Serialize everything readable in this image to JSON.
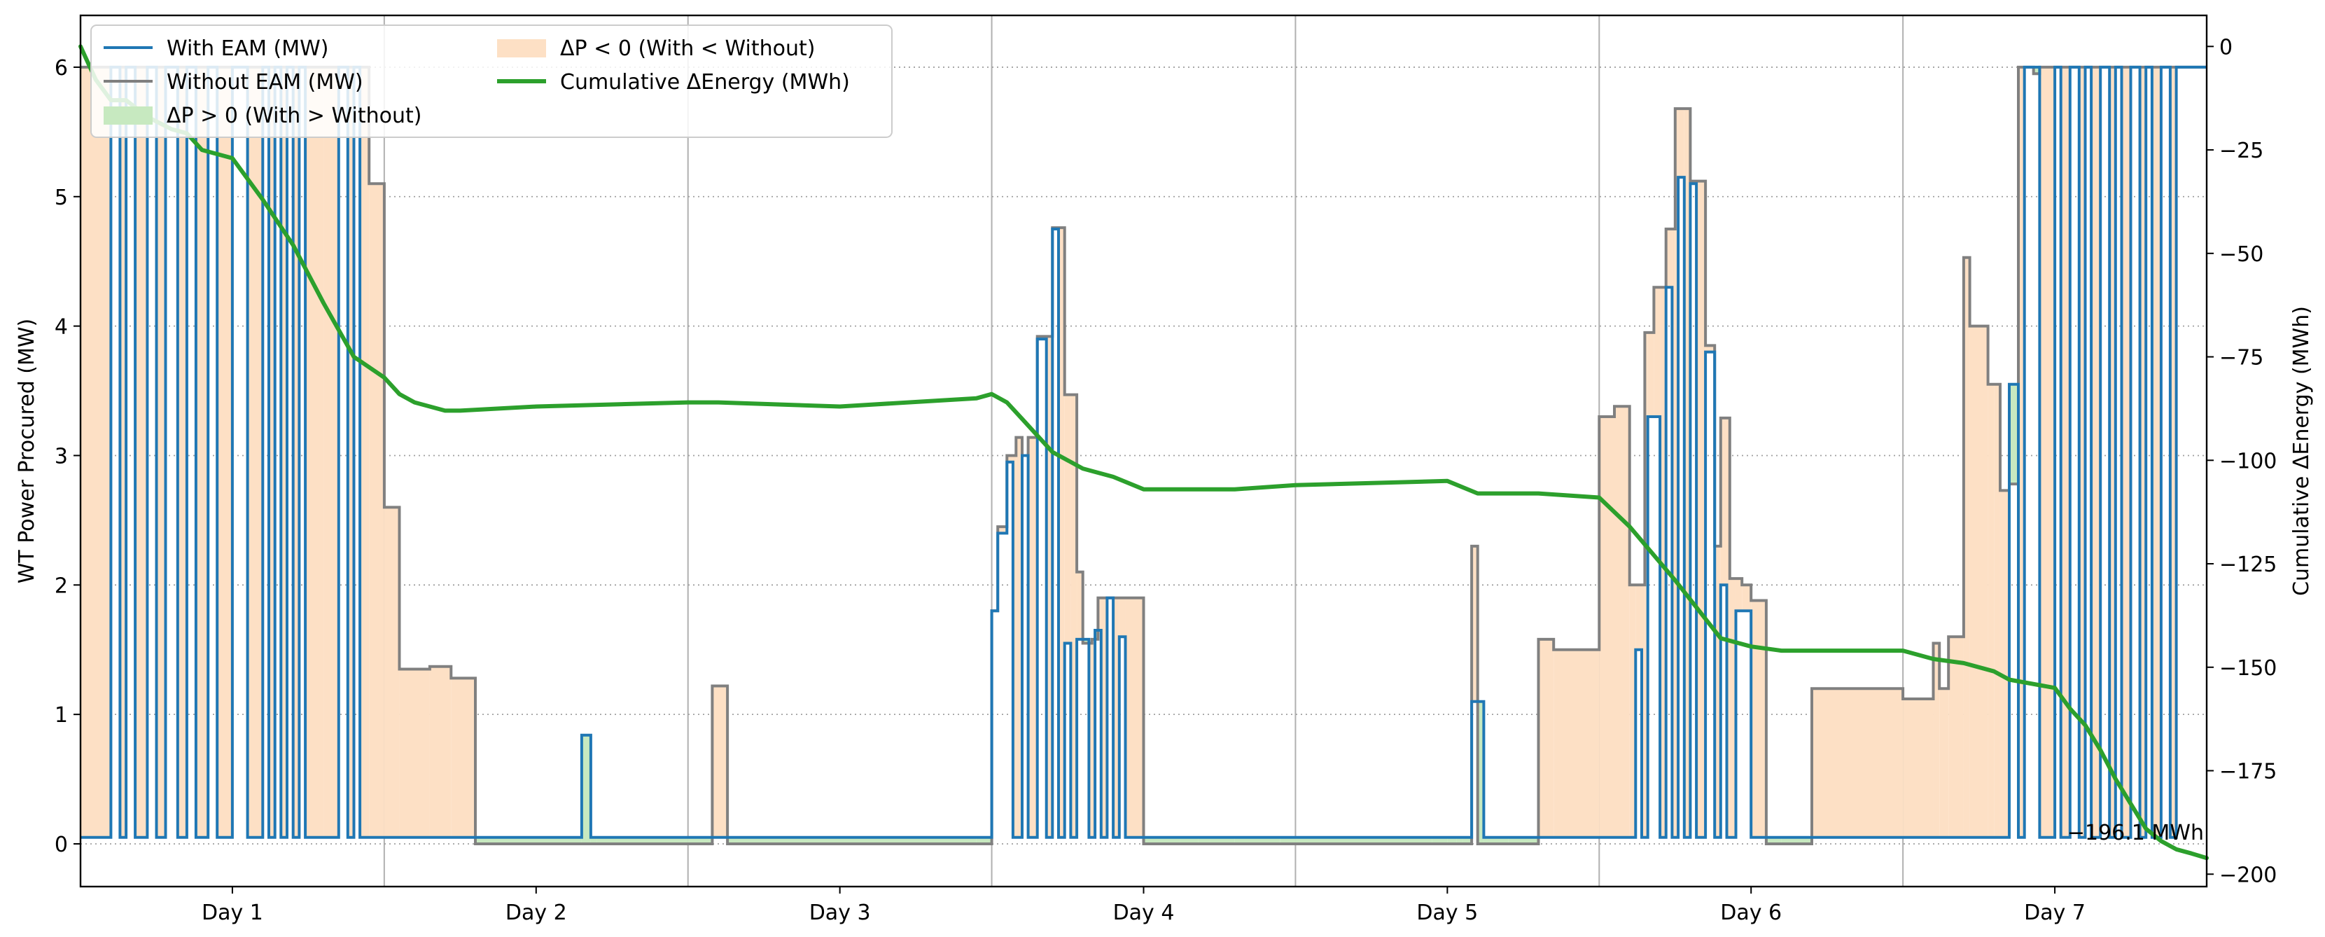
{
  "chart_data": {
    "type": "line",
    "title": "",
    "xlabel": "",
    "ylabel": "WT Power Procured (MW)",
    "ylabel_right": "Cumulative ΔEnergy (MWh)",
    "xlim": [
      0.5,
      7.5
    ],
    "ylim": [
      -0.33,
      6.4
    ],
    "ylim_right": [
      -203,
      7.5
    ],
    "x_tick_labels": [
      "Day 1",
      "Day 2",
      "Day 3",
      "Day 4",
      "Day 5",
      "Day 6",
      "Day 7"
    ],
    "x_tick_values": [
      1,
      2,
      3,
      4,
      5,
      6,
      7
    ],
    "x_grid_values": [
      1.5,
      2.5,
      3.5,
      4.5,
      5.5,
      6.5
    ],
    "y_tick_values": [
      0,
      1,
      2,
      3,
      4,
      5,
      6
    ],
    "y_tick_labels": [
      "0",
      "1",
      "2",
      "3",
      "4",
      "5",
      "6"
    ],
    "y_right_tick_values": [
      0,
      -25,
      -50,
      -75,
      -100,
      -125,
      -150,
      -175,
      -200
    ],
    "y_right_tick_labels": [
      "0",
      "−25",
      "−50",
      "−75",
      "−100",
      "−125",
      "−150",
      "−175",
      "−200"
    ],
    "grid": {
      "x": true,
      "y": true,
      "y_style": "dotted"
    },
    "legend_position": "top-left",
    "legend": [
      {
        "label": "With EAM (MW)",
        "kind": "line",
        "color": "#1f77b4"
      },
      {
        "label": "Without EAM (MW)",
        "kind": "line",
        "color": "#7f7f7f"
      },
      {
        "label": "ΔP > 0 (With > Without)",
        "kind": "patch",
        "color": "#c7e9c0"
      },
      {
        "label": "ΔP < 0 (With < Without)",
        "kind": "patch",
        "color": "#fde0c5"
      },
      {
        "label": "Cumulative ΔEnergy (MWh)",
        "kind": "line",
        "color": "#2ca02c"
      }
    ],
    "annotation": {
      "text": "−196.1 MWh",
      "x": 7.5,
      "y": -196.1
    },
    "colors": {
      "with": "#1f77b4",
      "without": "#808080",
      "fill_negative": "#fde0c5",
      "fill_positive": "#c7e9c0",
      "cumulative": "#2ca02c"
    },
    "series": [
      {
        "name": "Without EAM (MW)",
        "axis": "left",
        "step": true,
        "x": [
          0.5,
          1.45,
          1.5,
          1.55,
          1.65,
          1.72,
          1.8,
          2.5,
          2.58,
          2.63,
          3.45,
          3.5,
          3.52,
          3.55,
          3.58,
          3.6,
          3.62,
          3.65,
          3.7,
          3.74,
          3.78,
          3.8,
          3.83,
          3.85,
          4.0,
          4.12,
          4.18,
          4.22,
          4.3,
          4.5,
          5.05,
          5.08,
          5.1,
          5.3,
          5.35,
          5.5,
          5.55,
          5.6,
          5.65,
          5.68,
          5.72,
          5.75,
          5.8,
          5.85,
          5.88,
          5.9,
          5.93,
          5.97,
          6.0,
          6.05,
          6.1,
          6.2,
          6.5,
          6.6,
          6.62,
          6.65,
          6.7,
          6.72,
          6.78,
          6.82,
          6.85,
          6.88,
          6.9,
          6.93,
          6.95,
          7.0,
          7.05,
          7.1,
          7.2,
          7.5
        ],
        "y": [
          6.0,
          5.1,
          2.6,
          1.35,
          1.37,
          1.28,
          0.0,
          0.0,
          1.22,
          0.0,
          0.0,
          1.8,
          2.45,
          3.0,
          3.14,
          3.0,
          3.14,
          3.92,
          4.76,
          3.47,
          2.1,
          1.55,
          1.58,
          1.9,
          0.0,
          0.0,
          0.0,
          0.0,
          0.0,
          0.0,
          0.0,
          2.3,
          0.0,
          1.58,
          1.5,
          3.3,
          3.38,
          2.0,
          3.95,
          4.3,
          4.75,
          5.68,
          5.12,
          3.85,
          2.3,
          3.29,
          2.05,
          2.0,
          1.88,
          0.0,
          0.0,
          1.2,
          1.12,
          1.55,
          1.2,
          1.6,
          4.53,
          4.0,
          3.55,
          2.73,
          2.78,
          6.0,
          6.0,
          5.95,
          6.0,
          6.0,
          6.0,
          6.0,
          6.0,
          6.0
        ]
      },
      {
        "name": "With EAM (MW)",
        "axis": "left",
        "step": true,
        "x": [
          0.5,
          0.6,
          0.63,
          0.65,
          0.68,
          0.72,
          0.75,
          0.78,
          0.82,
          0.85,
          0.88,
          0.92,
          0.95,
          1.0,
          1.05,
          1.1,
          1.12,
          1.14,
          1.16,
          1.18,
          1.2,
          1.22,
          1.24,
          1.3,
          1.35,
          1.38,
          1.4,
          1.42,
          1.45,
          1.5,
          1.55,
          2.15,
          2.18,
          2.2,
          2.5,
          3.5,
          3.52,
          3.55,
          3.57,
          3.6,
          3.62,
          3.65,
          3.68,
          3.7,
          3.72,
          3.74,
          3.76,
          3.78,
          3.82,
          3.84,
          3.86,
          3.88,
          3.9,
          3.92,
          3.94,
          4.0,
          4.45,
          4.5,
          4.95,
          5.0,
          5.03,
          5.05,
          5.08,
          5.12,
          5.2,
          5.5,
          5.62,
          5.64,
          5.66,
          5.7,
          5.72,
          5.74,
          5.76,
          5.78,
          5.8,
          5.82,
          5.85,
          5.88,
          5.9,
          5.92,
          5.95,
          6.0,
          6.2,
          6.5,
          6.8,
          6.85,
          6.88,
          6.9,
          6.95,
          7.0,
          7.02,
          7.05,
          7.08,
          7.1,
          7.12,
          7.15,
          7.18,
          7.2,
          7.22,
          7.25,
          7.28,
          7.3,
          7.32,
          7.35,
          7.38,
          7.4,
          7.5
        ],
        "y": [
          0.05,
          6.0,
          0.05,
          6.0,
          0.05,
          6.0,
          0.05,
          6.0,
          0.05,
          6.0,
          0.05,
          6.0,
          0.05,
          6.0,
          0.05,
          6.0,
          0.05,
          6.0,
          0.05,
          6.0,
          0.05,
          6.0,
          0.05,
          0.05,
          6.0,
          0.05,
          6.0,
          0.05,
          0.05,
          0.05,
          0.05,
          0.84,
          0.05,
          0.05,
          0.05,
          1.8,
          2.4,
          2.95,
          0.05,
          3.0,
          0.05,
          3.9,
          0.05,
          4.75,
          0.05,
          1.55,
          0.05,
          1.58,
          0.05,
          1.65,
          0.05,
          1.9,
          0.05,
          1.6,
          0.05,
          0.05,
          0.05,
          0.05,
          0.05,
          0.05,
          0.05,
          0.05,
          1.1,
          0.05,
          0.05,
          0.05,
          1.5,
          0.05,
          3.3,
          0.05,
          4.3,
          0.05,
          5.15,
          0.05,
          5.1,
          0.05,
          3.8,
          0.05,
          2.0,
          0.05,
          1.8,
          0.05,
          0.05,
          0.05,
          0.05,
          3.55,
          0.05,
          6.0,
          0.05,
          6.0,
          0.05,
          6.0,
          0.05,
          6.0,
          0.05,
          6.0,
          0.05,
          6.0,
          0.05,
          6.0,
          0.05,
          6.0,
          0.05,
          6.0,
          0.05,
          6.0,
          6.0
        ]
      },
      {
        "name": "Cumulative ΔEnergy (MWh)",
        "axis": "right",
        "step": false,
        "x": [
          0.5,
          0.55,
          0.6,
          0.65,
          0.72,
          0.8,
          0.85,
          0.9,
          0.95,
          1.0,
          1.1,
          1.2,
          1.3,
          1.4,
          1.5,
          1.55,
          1.6,
          1.7,
          1.75,
          2.0,
          2.5,
          2.6,
          3.0,
          3.45,
          3.5,
          3.55,
          3.6,
          3.7,
          3.8,
          3.85,
          3.9,
          4.0,
          4.1,
          4.3,
          4.5,
          5.0,
          5.1,
          5.3,
          5.5,
          5.6,
          5.75,
          5.9,
          6.0,
          6.1,
          6.2,
          6.5,
          6.6,
          6.7,
          6.8,
          6.85,
          7.0,
          7.05,
          7.1,
          7.15,
          7.2,
          7.25,
          7.3,
          7.35,
          7.4,
          7.45,
          7.5
        ],
        "y": [
          0,
          -8,
          -13,
          -13,
          -17,
          -20,
          -21,
          -25,
          -26,
          -27,
          -37,
          -48,
          -62,
          -75,
          -80,
          -84,
          -86,
          -88,
          -88,
          -87,
          -86,
          -86,
          -87,
          -85,
          -84,
          -86,
          -90,
          -98,
          -102,
          -103,
          -104,
          -107,
          -107,
          -107,
          -106,
          -105,
          -108,
          -108,
          -109,
          -116,
          -129,
          -143,
          -145,
          -146,
          -146,
          -146,
          -148,
          -149,
          -151,
          -153,
          -155,
          -160,
          -164,
          -170,
          -177,
          -183,
          -189,
          -192,
          -194,
          -195,
          -196.1
        ]
      }
    ]
  }
}
